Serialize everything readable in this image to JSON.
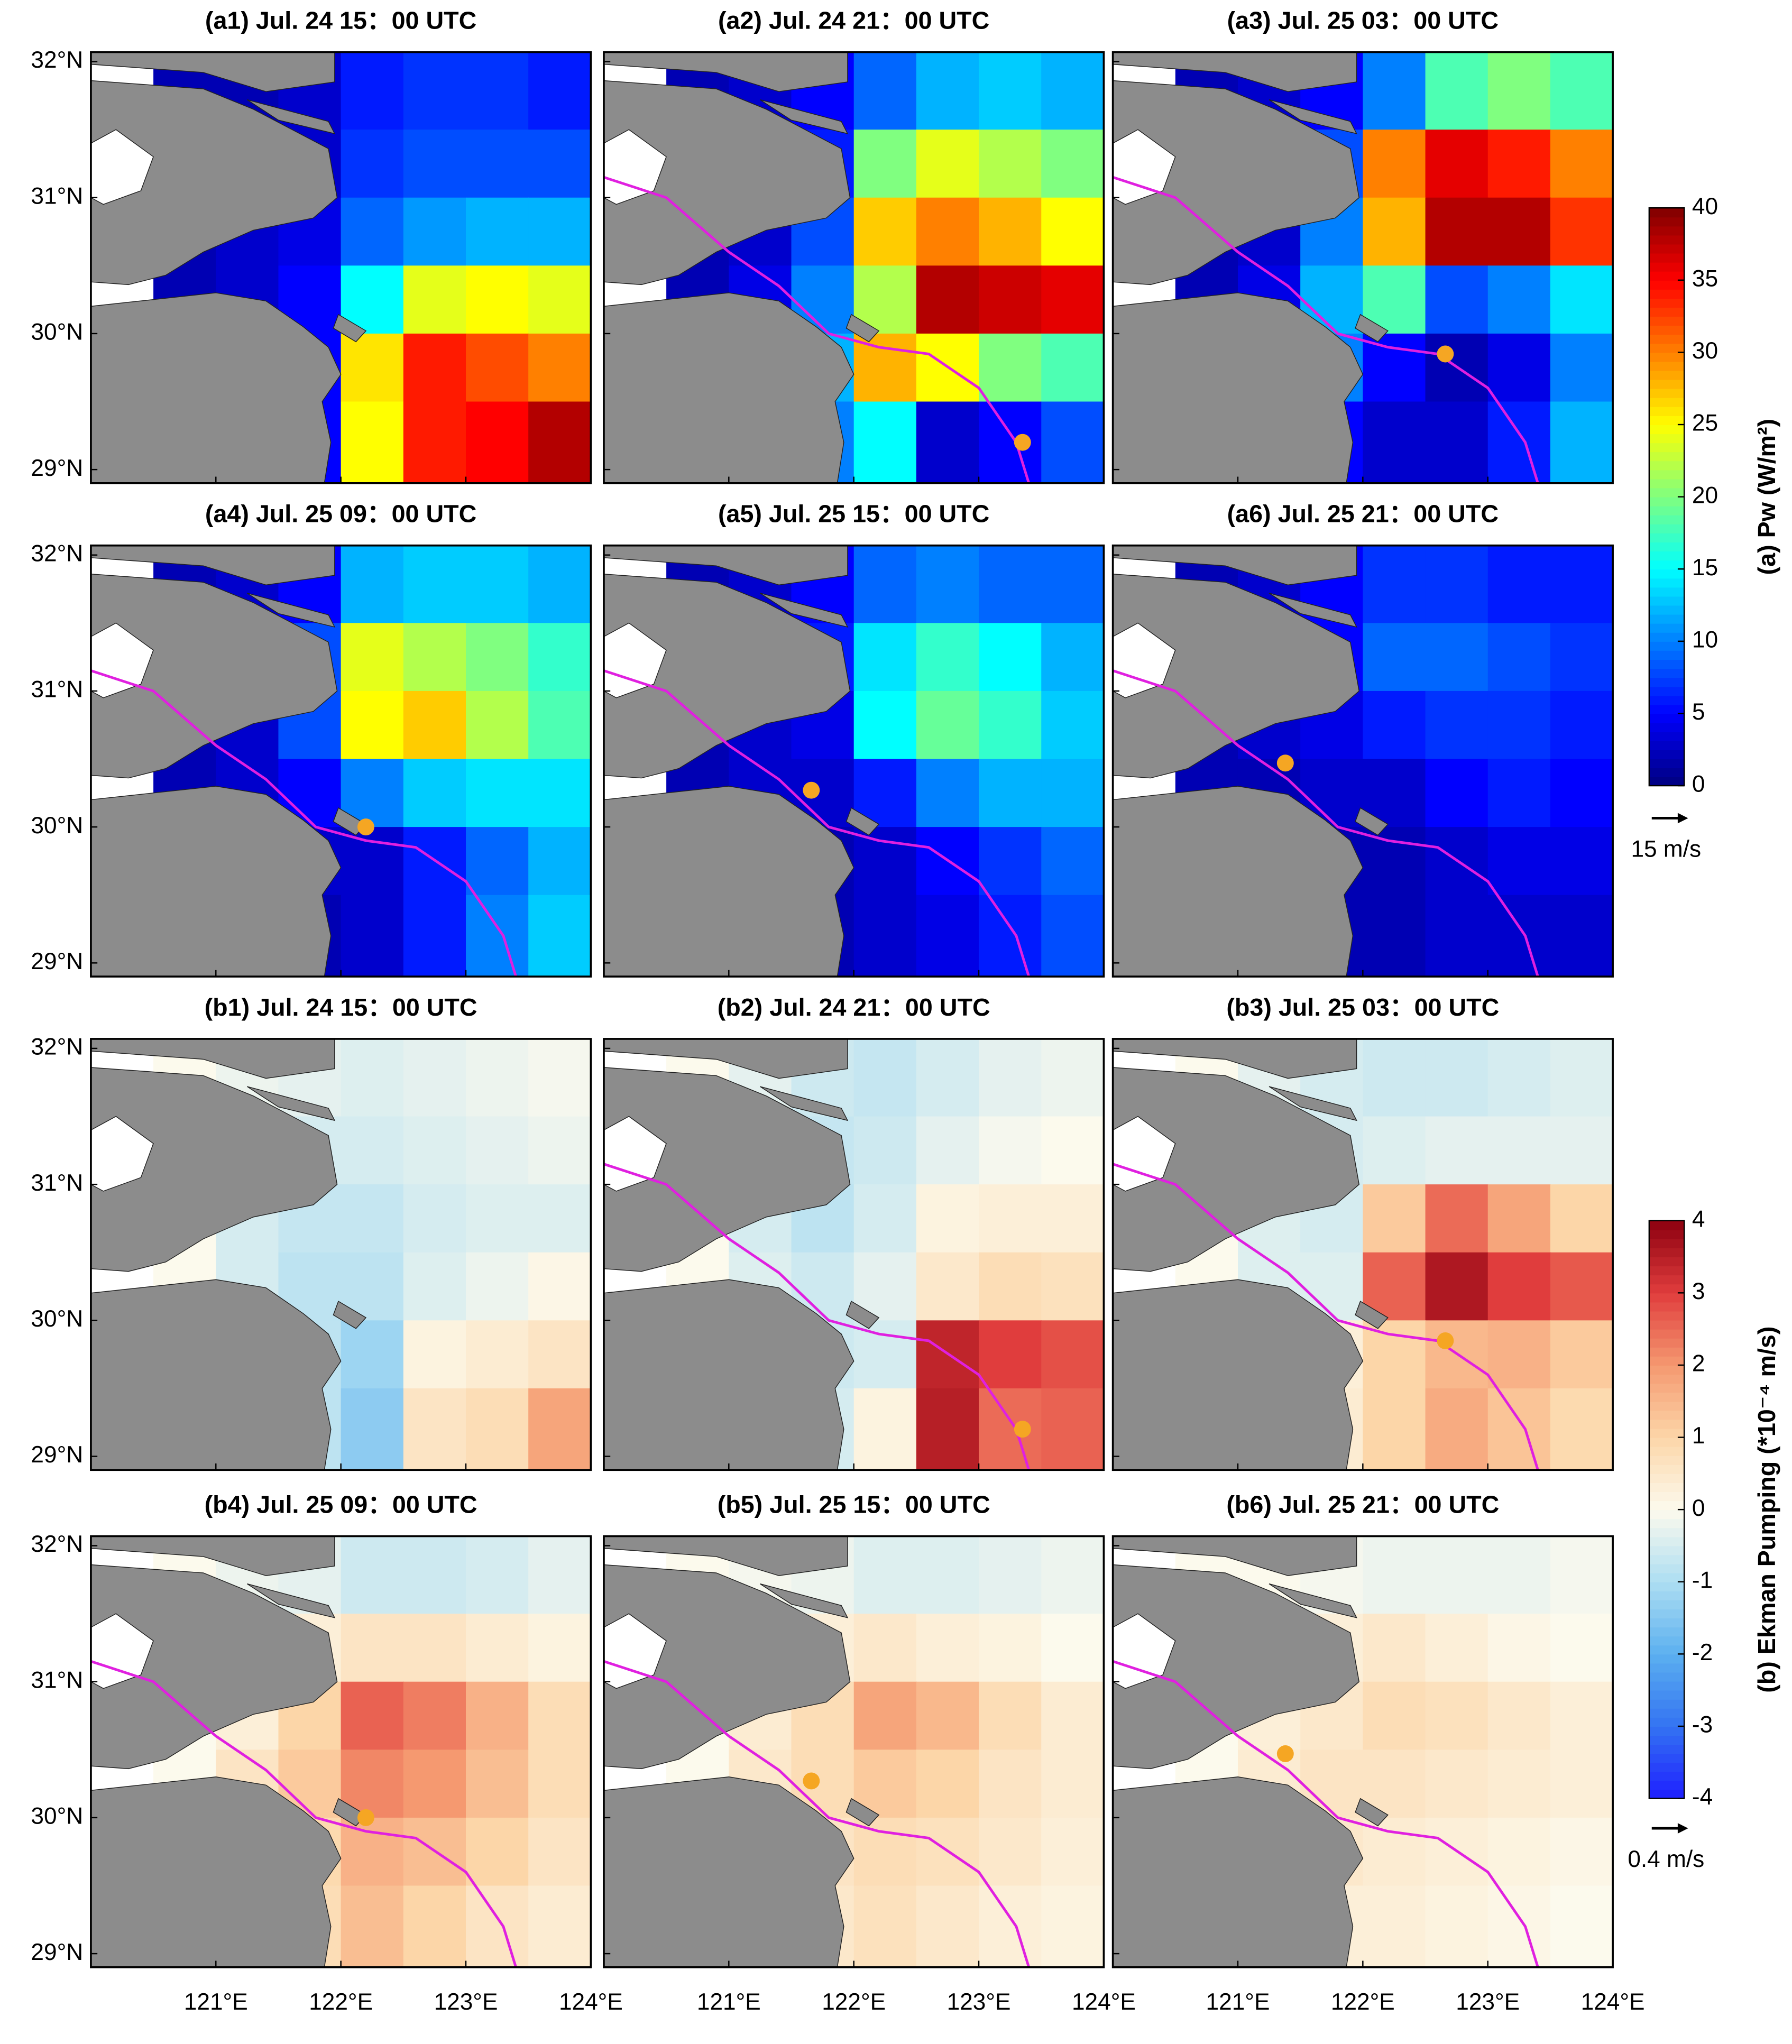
{
  "figure": {
    "lonlim": [
      120,
      124
    ],
    "latlim": [
      28.9,
      32.07
    ],
    "xticks": [
      {
        "value": 121,
        "label": "121°E"
      },
      {
        "value": 122,
        "label": "122°E"
      },
      {
        "value": 123,
        "label": "123°E"
      },
      {
        "value": 124,
        "label": "124°E"
      }
    ],
    "yticks": [
      {
        "value": 32,
        "label": "32°N"
      },
      {
        "value": 31,
        "label": "31°N"
      },
      {
        "value": 30,
        "label": "30°N"
      },
      {
        "value": 29,
        "label": "29°N"
      }
    ],
    "grid_lon": [
      120.5,
      121,
      121.5,
      122,
      122.5,
      123,
      123.5,
      124
    ],
    "grid_lat": [
      32.1,
      31.5,
      31,
      30.5,
      30,
      29.5,
      28.9
    ],
    "track": {
      "lon": [
        120.0,
        120.5,
        121.0,
        121.4,
        121.8,
        122.2,
        122.6,
        123.0,
        123.3,
        123.4
      ],
      "lat": [
        31.15,
        31.0,
        30.6,
        30.35,
        30.0,
        29.9,
        29.85,
        29.6,
        29.2,
        28.9
      ]
    },
    "colorbars": [
      {
        "colormap": "jet",
        "clim": [
          0,
          40
        ],
        "ticks": [
          0,
          5,
          10,
          15,
          20,
          25,
          30,
          35,
          40
        ],
        "label": "(a) Pw (W/m²)",
        "vector_label": "15 m/s"
      },
      {
        "colormap": "bwr",
        "clim": [
          -4,
          4
        ],
        "ticks": [
          -4,
          -3,
          -2,
          -1,
          0,
          1,
          2,
          3,
          4
        ],
        "label": "(b) Ekman Pumping (*10⁻⁴ m/s)",
        "vector_label": "0.4 m/s"
      }
    ]
  },
  "chart_data": [
    {
      "type": "heatmap",
      "title": "(a1) Jul. 24 15：00 UTC",
      "colormap": "jet",
      "center": null,
      "values": [
        [
          2,
          2,
          3,
          6,
          7,
          7,
          6
        ],
        [
          2,
          2,
          3,
          7,
          8,
          8,
          8
        ],
        [
          2,
          3,
          4,
          9,
          11,
          12,
          12
        ],
        [
          2,
          3,
          5,
          15,
          24,
          25,
          24
        ],
        [
          2,
          3,
          5,
          26,
          34,
          32,
          30
        ],
        [
          2,
          3,
          5,
          25,
          34,
          35,
          38
        ]
      ]
    },
    {
      "type": "heatmap",
      "title": "(a2) Jul. 24 21：00 UTC",
      "colormap": "jet",
      "center": [
        123.35,
        29.2
      ],
      "values": [
        [
          2,
          3,
          5,
          9,
          12,
          13,
          12
        ],
        [
          2,
          3,
          6,
          20,
          24,
          22,
          20
        ],
        [
          2,
          3,
          8,
          27,
          30,
          28,
          25
        ],
        [
          2,
          4,
          10,
          22,
          38,
          37,
          36
        ],
        [
          2,
          4,
          12,
          28,
          25,
          20,
          18
        ],
        [
          2,
          4,
          10,
          15,
          3,
          5,
          8
        ]
      ]
    },
    {
      "type": "heatmap",
      "title": "(a3) Jul. 25 03：00 UTC",
      "colormap": "jet",
      "center": [
        122.66,
        29.85
      ],
      "values": [
        [
          2,
          3,
          5,
          10,
          18,
          20,
          18
        ],
        [
          2,
          3,
          8,
          30,
          36,
          34,
          30
        ],
        [
          2,
          3,
          10,
          28,
          38,
          38,
          33
        ],
        [
          2,
          4,
          12,
          18,
          8,
          10,
          14
        ],
        [
          2,
          4,
          10,
          5,
          2,
          4,
          10
        ],
        [
          2,
          3,
          5,
          3,
          3,
          6,
          12
        ]
      ]
    },
    {
      "type": "heatmap",
      "title": "(a4) Jul. 25 09：00 UTC",
      "colormap": "jet",
      "center": [
        122.2,
        30.0
      ],
      "values": [
        [
          2,
          3,
          5,
          12,
          13,
          13,
          12
        ],
        [
          2,
          3,
          8,
          24,
          22,
          20,
          17
        ],
        [
          2,
          3,
          8,
          25,
          27,
          22,
          18
        ],
        [
          2,
          3,
          5,
          10,
          13,
          14,
          14
        ],
        [
          2,
          3,
          3,
          3,
          6,
          9,
          12
        ],
        [
          2,
          2,
          2,
          3,
          6,
          10,
          13
        ]
      ]
    },
    {
      "type": "heatmap",
      "title": "(a5) Jul. 25 15：00 UTC",
      "colormap": "jet",
      "center": [
        121.66,
        30.27
      ],
      "values": [
        [
          2,
          3,
          5,
          9,
          10,
          9,
          9
        ],
        [
          2,
          3,
          6,
          14,
          17,
          15,
          12
        ],
        [
          2,
          3,
          4,
          15,
          19,
          17,
          13
        ],
        [
          2,
          3,
          3,
          6,
          10,
          12,
          12
        ],
        [
          2,
          2,
          2,
          3,
          5,
          7,
          9
        ],
        [
          2,
          2,
          2,
          3,
          4,
          6,
          8
        ]
      ]
    },
    {
      "type": "heatmap",
      "title": "(a6) Jul. 25 21：00 UTC",
      "colormap": "jet",
      "center": [
        121.38,
        30.47
      ],
      "values": [
        [
          2,
          3,
          5,
          7,
          7,
          6,
          6
        ],
        [
          2,
          3,
          5,
          9,
          9,
          8,
          7
        ],
        [
          2,
          3,
          4,
          6,
          7,
          7,
          6
        ],
        [
          2,
          2,
          3,
          3,
          5,
          6,
          5
        ],
        [
          2,
          2,
          2,
          2,
          3,
          4,
          4
        ],
        [
          1,
          2,
          2,
          2,
          3,
          3,
          3
        ]
      ]
    },
    {
      "type": "heatmap",
      "title": "(b1) Jul. 24 15：00 UTC",
      "colormap": "bwr",
      "center": null,
      "values": [
        [
          0,
          -0.2,
          -0.3,
          -0.4,
          -0.3,
          -0.2,
          -0.1
        ],
        [
          0,
          -0.3,
          -0.5,
          -0.5,
          -0.4,
          -0.3,
          -0.2
        ],
        [
          0,
          -0.5,
          -0.7,
          -0.7,
          -0.5,
          -0.4,
          -0.4
        ],
        [
          0,
          -0.5,
          -0.8,
          -0.8,
          -0.4,
          -0.2,
          0.1
        ],
        [
          0,
          -0.5,
          -0.8,
          -1.2,
          0.2,
          0.4,
          0.6
        ],
        [
          0,
          -0.4,
          -0.8,
          -1.4,
          0.6,
          0.8,
          1.8
        ]
      ]
    },
    {
      "type": "heatmap",
      "title": "(b2) Jul. 24 21：00 UTC",
      "colormap": "bwr",
      "center": [
        123.35,
        29.2
      ],
      "values": [
        [
          0,
          -0.3,
          -0.6,
          -0.7,
          -0.5,
          -0.3,
          -0.2
        ],
        [
          0,
          -0.4,
          -0.7,
          -0.6,
          -0.3,
          -0.1,
          0
        ],
        [
          0,
          -0.5,
          -0.8,
          -0.5,
          0.2,
          0.3,
          0.3
        ],
        [
          0,
          -0.4,
          -0.6,
          -0.3,
          0.5,
          0.8,
          0.7
        ],
        [
          0,
          -0.3,
          -0.6,
          -0.5,
          3.4,
          3.0,
          2.8
        ],
        [
          0,
          -0.3,
          -0.5,
          0.2,
          3.5,
          2.5,
          2.6
        ]
      ]
    },
    {
      "type": "heatmap",
      "title": "(b3) Jul. 25 03：00 UTC",
      "colormap": "bwr",
      "center": [
        122.66,
        29.85
      ],
      "values": [
        [
          0,
          -0.3,
          -0.5,
          -0.6,
          -0.6,
          -0.5,
          -0.4
        ],
        [
          0,
          -0.3,
          -0.5,
          -0.4,
          -0.3,
          -0.3,
          -0.3
        ],
        [
          0,
          -0.4,
          -0.5,
          1.2,
          2.5,
          1.8,
          1.0
        ],
        [
          0,
          -0.4,
          -0.4,
          2.6,
          3.6,
          3.0,
          2.7
        ],
        [
          0,
          -0.3,
          0.3,
          1.0,
          1.5,
          1.6,
          1.2
        ],
        [
          0,
          -0.2,
          0.4,
          1.0,
          1.7,
          1.3,
          0.9
        ]
      ]
    },
    {
      "type": "heatmap",
      "title": "(b4) Jul. 25 09：00 UTC",
      "colormap": "bwr",
      "center": [
        122.2,
        30.0
      ],
      "values": [
        [
          0,
          -0.2,
          -0.3,
          -0.6,
          -0.6,
          -0.5,
          -0.3
        ],
        [
          0,
          -0.1,
          0.3,
          0.6,
          0.6,
          0.4,
          0.2
        ],
        [
          0,
          0.3,
          1.0,
          2.6,
          2.3,
          1.6,
          0.8
        ],
        [
          0,
          0.6,
          1.2,
          2.2,
          2.0,
          1.4,
          0.8
        ],
        [
          0,
          0.5,
          0.9,
          1.6,
          1.4,
          1.0,
          0.6
        ],
        [
          0,
          0.4,
          0.8,
          1.4,
          1.0,
          0.6,
          0.4
        ]
      ]
    },
    {
      "type": "heatmap",
      "title": "(b5) Jul. 25 15：00 UTC",
      "colormap": "bwr",
      "center": [
        121.66,
        30.27
      ],
      "values": [
        [
          0,
          -0.1,
          -0.2,
          -0.4,
          -0.4,
          -0.3,
          -0.2
        ],
        [
          0,
          0,
          0.3,
          0.5,
          0.3,
          0.2,
          0
        ],
        [
          0,
          0.4,
          0.8,
          1.8,
          1.5,
          0.8,
          0.4
        ],
        [
          0,
          0.5,
          0.8,
          1.2,
          1.0,
          0.6,
          0.4
        ],
        [
          0,
          0.4,
          0.6,
          0.8,
          0.7,
          0.5,
          0.3
        ],
        [
          0,
          0.3,
          0.5,
          0.7,
          0.5,
          0.3,
          0.2
        ]
      ]
    },
    {
      "type": "heatmap",
      "title": "(b6) Jul. 25 21：00 UTC",
      "colormap": "bwr",
      "center": [
        121.38,
        30.47
      ],
      "values": [
        [
          0,
          0,
          -0.1,
          -0.2,
          -0.2,
          -0.2,
          -0.1
        ],
        [
          0,
          0.1,
          0.3,
          0.5,
          0.3,
          0.1,
          0
        ],
        [
          0,
          0.3,
          0.5,
          0.8,
          0.7,
          0.5,
          0.3
        ],
        [
          0,
          0.4,
          0.6,
          0.6,
          0.5,
          0.4,
          0.3
        ],
        [
          0,
          0.3,
          0.5,
          0.4,
          0.3,
          0.2,
          0.1
        ],
        [
          0,
          0.2,
          0.3,
          0.3,
          0.2,
          0.1,
          0
        ]
      ]
    }
  ]
}
